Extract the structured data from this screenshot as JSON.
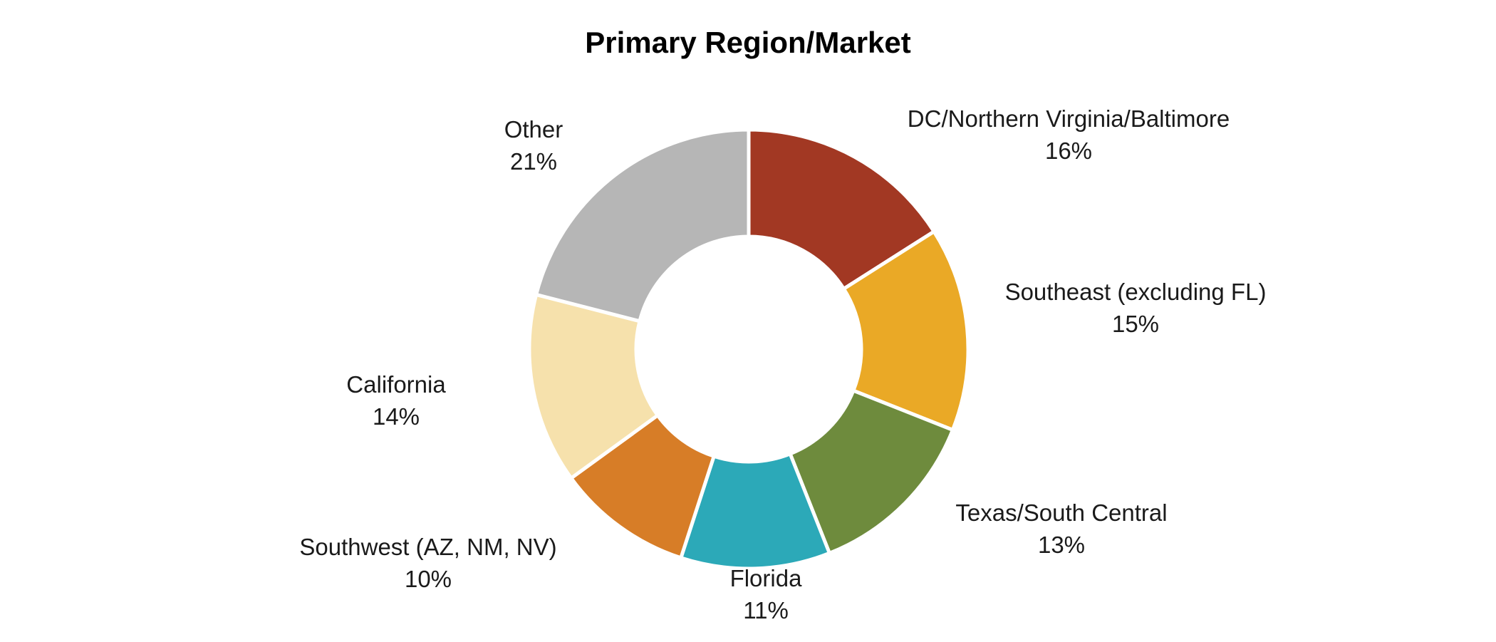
{
  "chart_data": {
    "type": "pie",
    "donut": true,
    "title": "Primary Region/Market",
    "slices": [
      {
        "label": "DC/Northern Virginia/Baltimore",
        "value": 16,
        "value_label": "16%",
        "color": "#A23823"
      },
      {
        "label": "Southeast (excluding FL)",
        "value": 15,
        "value_label": "15%",
        "color": "#EAA926"
      },
      {
        "label": "Texas/South Central",
        "value": 13,
        "value_label": "13%",
        "color": "#6E8B3D"
      },
      {
        "label": "Florida",
        "value": 11,
        "value_label": "11%",
        "color": "#2CA9B8"
      },
      {
        "label": "Southwest (AZ, NM, NV)",
        "value": 10,
        "value_label": "10%",
        "color": "#D77D27"
      },
      {
        "label": "California",
        "value": 14,
        "value_label": "14%",
        "color": "#F6E1AC"
      },
      {
        "label": "Other",
        "value": 21,
        "value_label": "21%",
        "color": "#B6B6B6"
      }
    ],
    "legend": "none",
    "start_angle": "top",
    "direction": "clockwise"
  }
}
